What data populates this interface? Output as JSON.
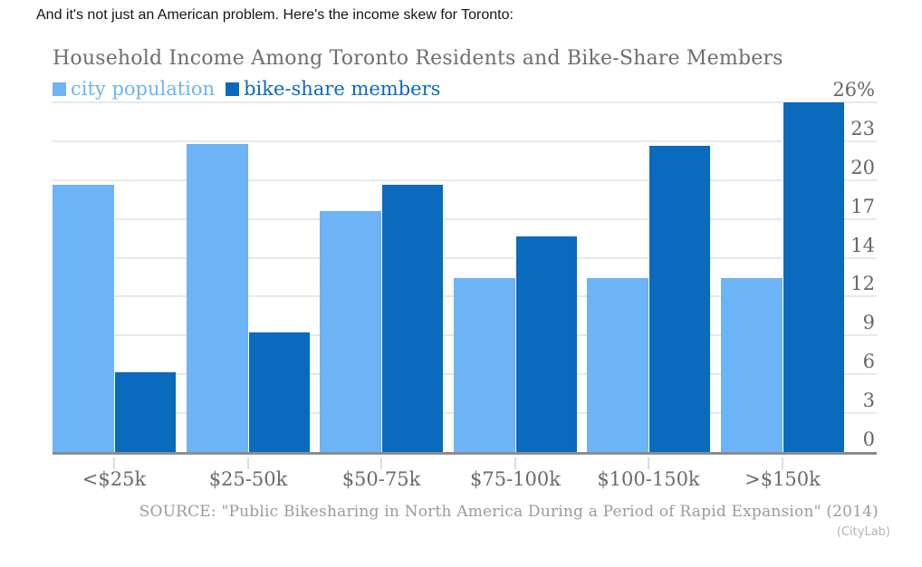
{
  "intro_text": "And it's not just an American problem. Here's the income skew for Toronto:",
  "chart_data": {
    "type": "bar",
    "title": "Household Income Among Toronto Residents and Bike-Share Members",
    "categories": [
      "<$25k",
      "$25-50k",
      "$50-75k",
      "$75-100k",
      "$100-150k",
      ">$150k"
    ],
    "series": [
      {
        "name": "city population",
        "color": "#6CB4F5",
        "values": [
          19.9,
          22.9,
          17.9,
          12.9,
          12.9,
          12.9
        ]
      },
      {
        "name": "bike-share members",
        "color": "#0A6ABD",
        "values": [
          5.9,
          8.9,
          19.9,
          16.0,
          22.8,
          26.0
        ]
      }
    ],
    "xlabel": "",
    "ylabel": "",
    "ylim": [
      0,
      26
    ],
    "yticks": [
      0,
      2.89,
      5.78,
      8.67,
      11.56,
      14.44,
      17.33,
      20.22,
      23.11,
      26
    ],
    "ytick_labels": [
      "0",
      "3",
      "6",
      "9",
      "12",
      "14",
      "17",
      "20",
      "23",
      "26%"
    ],
    "grid": "horizontal",
    "legend_position": "top-left",
    "y_axis_side": "right",
    "source": "SOURCE: \"Public Bikesharing in North America During a Period of Rapid Expansion\" (2014)",
    "credit": "(CityLab)"
  },
  "colors": {
    "city_population": "#6CB4F5",
    "bike_share_members": "#0A6ABD",
    "gridline": "#e8e8e8",
    "axis_line": "#8c8c8c",
    "title_text": "#6e6e6e",
    "axis_text": "#666666",
    "source_text": "#9b9b9b"
  }
}
